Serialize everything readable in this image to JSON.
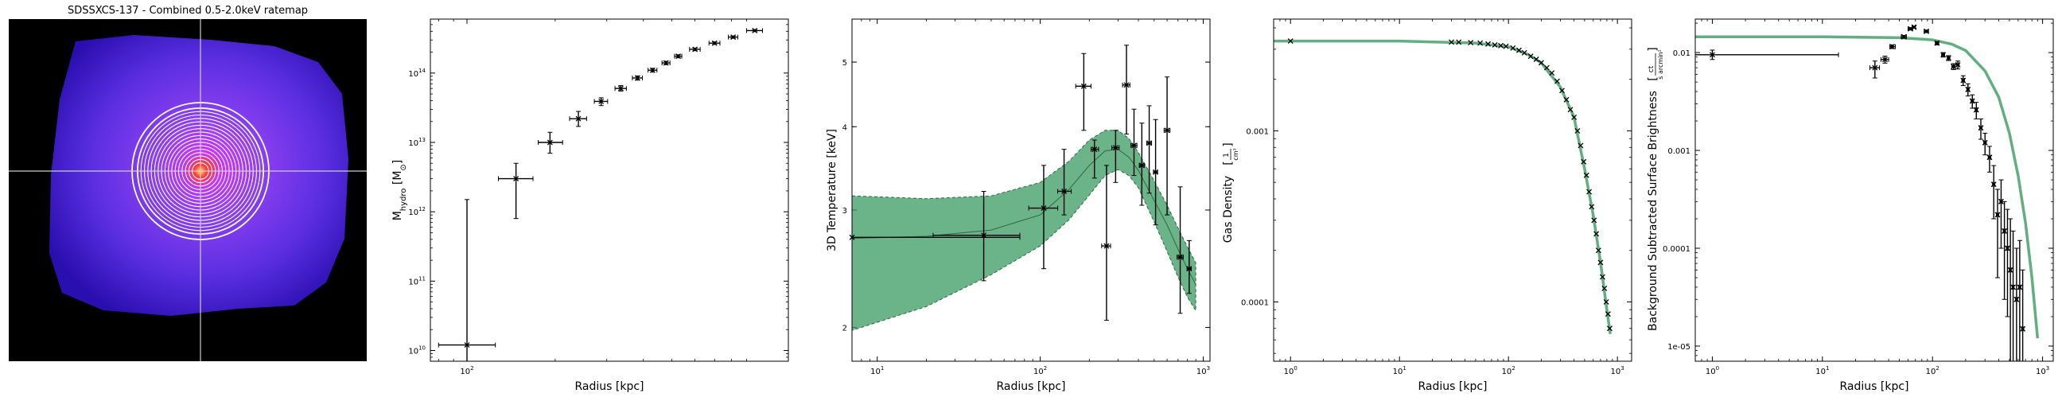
{
  "chart_data": [
    {
      "type": "image",
      "title": "SDSSXCS-137 - Combined 0.5-2.0keV ratemap",
      "colormap": "gnuplot2",
      "overlay": "crosshair-and-concentric-annuli",
      "annuli_count": 17
    },
    {
      "type": "scatter",
      "xlabel": "Radius [kpc]",
      "ylabel": "M_hydro [M_⊙]",
      "xscale": "log",
      "yscale": "log",
      "xlim": [
        75,
        1250
      ],
      "ylim": [
        7000000000.0,
        600000000000000.0
      ],
      "xticks": [
        {
          "v": 100,
          "b": "10",
          "e": "2"
        }
      ],
      "yticks": [
        {
          "v": 10000000000.0,
          "b": "10",
          "e": "10"
        },
        {
          "v": 100000000000.0,
          "b": "10",
          "e": "11"
        },
        {
          "v": 1000000000000.0,
          "b": "10",
          "e": "12"
        },
        {
          "v": 10000000000000.0,
          "b": "10",
          "e": "13"
        },
        {
          "v": 100000000000000.0,
          "b": "10",
          "e": "14"
        }
      ],
      "points": [
        {
          "x": 100,
          "xlo": 80,
          "xhi": 125,
          "y": 12000000000.0,
          "ylo": 7000000000.0,
          "yhi": 1500000000000.0
        },
        {
          "x": 147,
          "xlo": 128,
          "xhi": 168,
          "y": 3000000000000.0,
          "ylo": 800000000000.0,
          "yhi": 5000000000000.0
        },
        {
          "x": 192,
          "xlo": 175,
          "xhi": 212,
          "y": 10000000000000.0,
          "ylo": 7000000000000.0,
          "yhi": 14000000000000.0
        },
        {
          "x": 240,
          "xlo": 224,
          "xhi": 256,
          "y": 22000000000000.0,
          "ylo": 17000000000000.0,
          "yhi": 28000000000000.0
        },
        {
          "x": 287,
          "xlo": 272,
          "xhi": 302,
          "y": 39000000000000.0,
          "ylo": 34000000000000.0,
          "yhi": 44000000000000.0
        },
        {
          "x": 335,
          "xlo": 320,
          "xhi": 350,
          "y": 60000000000000.0,
          "ylo": 55000000000000.0,
          "yhi": 66000000000000.0
        },
        {
          "x": 382,
          "xlo": 367,
          "xhi": 397,
          "y": 85000000000000.0,
          "ylo": 79000000000000.0,
          "yhi": 91000000000000.0
        },
        {
          "x": 430,
          "xlo": 415,
          "xhi": 445,
          "y": 110000000000000.0,
          "ylo": 103000000000000.0,
          "yhi": 117000000000000.0
        },
        {
          "x": 478,
          "xlo": 463,
          "xhi": 493,
          "y": 140000000000000.0,
          "ylo": 132000000000000.0,
          "yhi": 148000000000000.0
        },
        {
          "x": 526,
          "xlo": 511,
          "xhi": 541,
          "y": 175000000000000.0,
          "ylo": 166000000000000.0,
          "yhi": 184000000000000.0
        },
        {
          "x": 600,
          "xlo": 575,
          "xhi": 625,
          "y": 220000000000000.0,
          "ylo": 210000000000000.0,
          "yhi": 230000000000000.0
        },
        {
          "x": 700,
          "xlo": 670,
          "xhi": 730,
          "y": 270000000000000.0,
          "ylo": 258000000000000.0,
          "yhi": 282000000000000.0
        },
        {
          "x": 810,
          "xlo": 780,
          "xhi": 840,
          "y": 330000000000000.0,
          "ylo": 317000000000000.0,
          "yhi": 343000000000000.0
        },
        {
          "x": 960,
          "xlo": 900,
          "xhi": 1020,
          "y": 410000000000000.0,
          "ylo": 395000000000000.0,
          "yhi": 425000000000000.0
        }
      ]
    },
    {
      "type": "scatter",
      "xlabel": "Radius [kpc]",
      "ylabel": "3D Temperature [keV]",
      "xscale": "log",
      "yscale": "log",
      "xlim": [
        7,
        1100
      ],
      "ylim": [
        1.78,
        5.8
      ],
      "xticks": [
        {
          "v": 10,
          "b": "10",
          "e": "1"
        },
        {
          "v": 100,
          "b": "10",
          "e": "2"
        },
        {
          "v": 1000,
          "b": "10",
          "e": "3"
        }
      ],
      "yticks": [
        {
          "v": 2,
          "b": "2",
          "e": ""
        },
        {
          "v": 3,
          "b": "3",
          "e": ""
        },
        {
          "v": 4,
          "b": "4",
          "e": ""
        },
        {
          "v": 5,
          "b": "5",
          "e": ""
        }
      ],
      "model_band": {
        "x": [
          7,
          20,
          50,
          100,
          150,
          200,
          250,
          300,
          350,
          400,
          500,
          600,
          700,
          800,
          900
        ],
        "y": [
          2.72,
          2.74,
          2.8,
          2.95,
          3.22,
          3.5,
          3.68,
          3.7,
          3.6,
          3.44,
          3.1,
          2.85,
          2.62,
          2.45,
          2.32
        ],
        "ylo": [
          1.98,
          2.15,
          2.4,
          2.65,
          2.9,
          3.16,
          3.38,
          3.45,
          3.38,
          3.24,
          2.88,
          2.6,
          2.38,
          2.22,
          2.12
        ],
        "yhi": [
          3.15,
          3.12,
          3.15,
          3.3,
          3.55,
          3.82,
          3.95,
          3.95,
          3.84,
          3.66,
          3.32,
          3.05,
          2.82,
          2.64,
          2.5
        ]
      },
      "points": [
        {
          "x": 7,
          "xlo": 7,
          "xhi": 75,
          "y": 2.73,
          "ylo": 2.73,
          "yhi": 2.73
        },
        {
          "x": 45,
          "xlo": 22,
          "xhi": 75,
          "y": 2.75,
          "ylo": 2.35,
          "yhi": 3.2
        },
        {
          "x": 105,
          "xlo": 85,
          "xhi": 128,
          "y": 3.02,
          "ylo": 2.45,
          "yhi": 3.5
        },
        {
          "x": 140,
          "xlo": 128,
          "xhi": 155,
          "y": 3.2,
          "ylo": 2.95,
          "yhi": 3.7
        },
        {
          "x": 185,
          "xlo": 165,
          "xhi": 205,
          "y": 4.6,
          "ylo": 3.95,
          "yhi": 5.15
        },
        {
          "x": 215,
          "xlo": 205,
          "xhi": 228,
          "y": 3.7,
          "ylo": 3.35,
          "yhi": 3.82
        },
        {
          "x": 255,
          "xlo": 238,
          "xhi": 270,
          "y": 2.65,
          "ylo": 2.05,
          "yhi": 3.5
        },
        {
          "x": 290,
          "xlo": 275,
          "xhi": 305,
          "y": 3.72,
          "ylo": 3.3,
          "yhi": 3.95
        },
        {
          "x": 338,
          "xlo": 320,
          "xhi": 355,
          "y": 4.62,
          "ylo": 3.9,
          "yhi": 5.3
        },
        {
          "x": 376,
          "xlo": 360,
          "xhi": 392,
          "y": 3.75,
          "ylo": 3.38,
          "yhi": 4.25
        },
        {
          "x": 420,
          "xlo": 405,
          "xhi": 435,
          "y": 3.5,
          "ylo": 3.05,
          "yhi": 4.05
        },
        {
          "x": 466,
          "xlo": 450,
          "xhi": 482,
          "y": 3.78,
          "ylo": 3.18,
          "yhi": 4.3
        },
        {
          "x": 510,
          "xlo": 495,
          "xhi": 525,
          "y": 3.42,
          "ylo": 2.85,
          "yhi": 4.1
        },
        {
          "x": 600,
          "xlo": 575,
          "xhi": 625,
          "y": 3.95,
          "ylo": 2.95,
          "yhi": 4.75
        },
        {
          "x": 722,
          "xlo": 690,
          "xhi": 755,
          "y": 2.55,
          "ylo": 2.1,
          "yhi": 3.25
        },
        {
          "x": 820,
          "xlo": 795,
          "xhi": 845,
          "y": 2.45,
          "ylo": 2.25,
          "yhi": 2.7
        }
      ]
    },
    {
      "type": "scatter",
      "xlabel": "Radius [kpc]",
      "ylabel": "Gas Density [1/cm³]",
      "xscale": "log",
      "yscale": "log",
      "xlim": [
        0.7,
        1350
      ],
      "ylim": [
        4.5e-05,
        0.0045
      ],
      "xticks": [
        {
          "v": 1,
          "b": "10",
          "e": "0"
        },
        {
          "v": 10,
          "b": "10",
          "e": "1"
        },
        {
          "v": 100,
          "b": "10",
          "e": "2"
        },
        {
          "v": 1000,
          "b": "10",
          "e": "3"
        }
      ],
      "yticks": [
        {
          "v": 0.0001,
          "b": "0.0001",
          "e": ""
        },
        {
          "v": 0.001,
          "b": "0.001",
          "e": ""
        }
      ],
      "model_curve": {
        "x": [
          0.7,
          10,
          50,
          100,
          150,
          200,
          300,
          400,
          500,
          600,
          700,
          800,
          860
        ],
        "y": [
          0.00335,
          0.00335,
          0.00326,
          0.0031,
          0.0028,
          0.0025,
          0.0018,
          0.0012,
          0.0006,
          0.00032,
          0.00017,
          9e-05,
          6.5e-05
        ]
      },
      "points": [
        {
          "x": 1,
          "y": 0.00335
        },
        {
          "x": 30,
          "y": 0.0033
        },
        {
          "x": 35,
          "y": 0.0033
        },
        {
          "x": 45,
          "y": 0.00328
        },
        {
          "x": 55,
          "y": 0.00326
        },
        {
          "x": 65,
          "y": 0.00322
        },
        {
          "x": 75,
          "y": 0.00318
        },
        {
          "x": 85,
          "y": 0.00315
        },
        {
          "x": 95,
          "y": 0.00312
        },
        {
          "x": 110,
          "y": 0.00305
        },
        {
          "x": 125,
          "y": 0.00296
        },
        {
          "x": 140,
          "y": 0.00286
        },
        {
          "x": 160,
          "y": 0.00273
        },
        {
          "x": 180,
          "y": 0.00262
        },
        {
          "x": 200,
          "y": 0.0025
        },
        {
          "x": 225,
          "y": 0.00234
        },
        {
          "x": 250,
          "y": 0.00218
        },
        {
          "x": 280,
          "y": 0.00195
        },
        {
          "x": 310,
          "y": 0.00172
        },
        {
          "x": 340,
          "y": 0.00152
        },
        {
          "x": 370,
          "y": 0.00133
        },
        {
          "x": 400,
          "y": 0.0012
        },
        {
          "x": 430,
          "y": 0.001
        },
        {
          "x": 460,
          "y": 0.00082
        },
        {
          "x": 490,
          "y": 0.00066
        },
        {
          "x": 520,
          "y": 0.00055
        },
        {
          "x": 550,
          "y": 0.00044
        },
        {
          "x": 580,
          "y": 0.00036
        },
        {
          "x": 610,
          "y": 0.0003
        },
        {
          "x": 640,
          "y": 0.00025
        },
        {
          "x": 670,
          "y": 0.0002
        },
        {
          "x": 700,
          "y": 0.00017
        },
        {
          "x": 730,
          "y": 0.00014
        },
        {
          "x": 760,
          "y": 0.00012
        },
        {
          "x": 790,
          "y": 0.0001
        },
        {
          "x": 820,
          "y": 8.5e-05
        },
        {
          "x": 850,
          "y": 7e-05
        }
      ]
    },
    {
      "type": "scatter",
      "xlabel": "Radius [kpc]",
      "ylabel": "Background Subtracted Surface Brightness [ct / (s arcmin²)]",
      "xscale": "log",
      "yscale": "log",
      "xlim": [
        0.7,
        1250
      ],
      "ylim": [
        7e-06,
        0.022
      ],
      "xticks": [
        {
          "v": 1,
          "b": "10",
          "e": "0"
        },
        {
          "v": 10,
          "b": "10",
          "e": "1"
        },
        {
          "v": 100,
          "b": "10",
          "e": "2"
        },
        {
          "v": 1000,
          "b": "10",
          "e": "3"
        }
      ],
      "yticks": [
        {
          "v": 1e-05,
          "b": "1e-05",
          "e": ""
        },
        {
          "v": 0.0001,
          "b": "0.0001",
          "e": ""
        },
        {
          "v": 0.001,
          "b": "0.001",
          "e": ""
        },
        {
          "v": 0.01,
          "b": "0.01",
          "e": ""
        }
      ],
      "model_curve": {
        "x": [
          0.7,
          10,
          50,
          100,
          150,
          200,
          300,
          400,
          500,
          600,
          700,
          800,
          900
        ],
        "y": [
          0.0145,
          0.0145,
          0.0142,
          0.0135,
          0.0122,
          0.0105,
          0.0065,
          0.0035,
          0.0015,
          0.00055,
          0.00018,
          5e-05,
          1.2e-05
        ]
      },
      "points": [
        {
          "x": 1,
          "xlo": 0.7,
          "xhi": 14,
          "y": 0.0095,
          "ylo": 0.0085,
          "yhi": 0.0106
        },
        {
          "x": 30,
          "xlo": 27,
          "xhi": 33,
          "y": 0.007,
          "ylo": 0.0055,
          "yhi": 0.0082
        },
        {
          "x": 37,
          "xlo": 34,
          "xhi": 40,
          "y": 0.0085,
          "ylo": 0.0078,
          "yhi": 0.0092
        },
        {
          "x": 43,
          "xlo": 41,
          "xhi": 46,
          "y": 0.0115,
          "ylo": 0.011,
          "yhi": 0.012
        },
        {
          "x": 55,
          "xlo": 52,
          "xhi": 58,
          "y": 0.0145,
          "ylo": 0.014,
          "yhi": 0.015
        },
        {
          "x": 63,
          "xlo": 60,
          "xhi": 66,
          "y": 0.0175,
          "ylo": 0.017,
          "yhi": 0.018
        },
        {
          "x": 68,
          "xlo": 66,
          "xhi": 70,
          "y": 0.0182,
          "ylo": 0.0177,
          "yhi": 0.0187
        },
        {
          "x": 88,
          "xlo": 84,
          "xhi": 92,
          "y": 0.0165,
          "ylo": 0.016,
          "yhi": 0.017
        },
        {
          "x": 110,
          "xlo": 106,
          "xhi": 114,
          "y": 0.0125,
          "ylo": 0.012,
          "yhi": 0.013
        },
        {
          "x": 125,
          "xlo": 121,
          "xhi": 129,
          "y": 0.0095,
          "ylo": 0.009,
          "yhi": 0.01
        },
        {
          "x": 140,
          "xlo": 136,
          "xhi": 144,
          "y": 0.0088,
          "ylo": 0.0083,
          "yhi": 0.0093
        },
        {
          "x": 155,
          "xlo": 150,
          "xhi": 160,
          "y": 0.0072,
          "ylo": 0.0067,
          "yhi": 0.0077
        },
        {
          "x": 170,
          "xlo": 165,
          "xhi": 175,
          "y": 0.0075,
          "ylo": 0.0068,
          "yhi": 0.0082
        },
        {
          "x": 190,
          "xlo": 185,
          "xhi": 195,
          "y": 0.0052,
          "ylo": 0.0046,
          "yhi": 0.0058
        },
        {
          "x": 210,
          "xlo": 205,
          "xhi": 215,
          "y": 0.0042,
          "ylo": 0.0036,
          "yhi": 0.0048
        },
        {
          "x": 230,
          "xlo": 224,
          "xhi": 236,
          "y": 0.0032,
          "ylo": 0.0027,
          "yhi": 0.0037
        },
        {
          "x": 250,
          "xlo": 244,
          "xhi": 256,
          "y": 0.0026,
          "ylo": 0.0021,
          "yhi": 0.0031
        },
        {
          "x": 275,
          "xlo": 268,
          "xhi": 282,
          "y": 0.0017,
          "ylo": 0.0013,
          "yhi": 0.0021
        },
        {
          "x": 300,
          "xlo": 292,
          "xhi": 308,
          "y": 0.0012,
          "ylo": 0.0009,
          "yhi": 0.0015
        },
        {
          "x": 330,
          "xlo": 321,
          "xhi": 339,
          "y": 0.00085,
          "ylo": 0.0006,
          "yhi": 0.0011
        },
        {
          "x": 360,
          "xlo": 351,
          "xhi": 369,
          "y": 0.00045,
          "ylo": 0.0002,
          "yhi": 0.0007
        },
        {
          "x": 390,
          "xlo": 381,
          "xhi": 399,
          "y": 0.00022,
          "ylo": 5e-05,
          "yhi": 0.0004
        },
        {
          "x": 420,
          "xlo": 410,
          "xhi": 430,
          "y": 0.0003,
          "ylo": 0.0001,
          "yhi": 0.0005
        },
        {
          "x": 450,
          "xlo": 440,
          "xhi": 460,
          "y": 0.00015,
          "ylo": 3e-05,
          "yhi": 0.0003
        },
        {
          "x": 480,
          "xlo": 470,
          "xhi": 490,
          "y": 0.0001,
          "ylo": 2e-05,
          "yhi": 0.00025
        },
        {
          "x": 510,
          "xlo": 500,
          "xhi": 520,
          "y": 6e-05,
          "ylo": 7e-06,
          "yhi": 0.0002
        },
        {
          "x": 540,
          "xlo": 530,
          "xhi": 550,
          "y": 4e-05,
          "ylo": 7e-06,
          "yhi": 0.00015
        },
        {
          "x": 580,
          "xlo": 568,
          "xhi": 592,
          "y": 3e-05,
          "ylo": 7e-06,
          "yhi": 0.0001
        },
        {
          "x": 620,
          "xlo": 606,
          "xhi": 634,
          "y": 4e-05,
          "ylo": 7e-06,
          "yhi": 0.00012
        },
        {
          "x": 660,
          "xlo": 645,
          "xhi": 675,
          "y": 1.5e-05,
          "ylo": 7e-06,
          "yhi": 6e-05
        }
      ]
    }
  ]
}
